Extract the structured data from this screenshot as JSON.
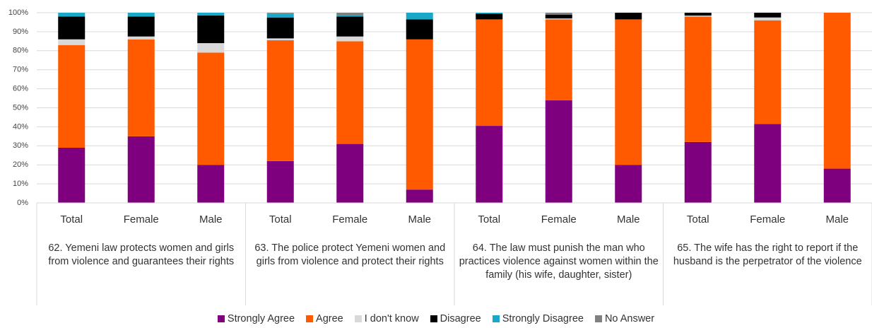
{
  "chart_data": {
    "type": "stacked_bar",
    "categories": [
      "Total",
      "Female",
      "Male",
      "Total",
      "Female",
      "Male",
      "Total",
      "Female",
      "Male",
      "Total",
      "Female",
      "Male"
    ],
    "groups": [
      "62. Yemeni law protects women and girls from violence and guarantees their rights",
      "63. The police protect Yemeni women and girls from violence and protect their rights",
      "64. The law must punish the man who practices violence against women within the family (his wife, daughter, sister)",
      "65. The wife has the right to report if the husband is the perpetrator of the violence"
    ],
    "series": [
      {
        "name": "Strongly Agree",
        "color": "#7f007f",
        "values": [
          29,
          35,
          20,
          22,
          31,
          7,
          40.5,
          54,
          20,
          32,
          41.5,
          18
        ]
      },
      {
        "name": "Agree",
        "color": "#ff5a00",
        "values": [
          54,
          51,
          59,
          63.5,
          54,
          79,
          56,
          42.5,
          76.5,
          66,
          54.5,
          82
        ]
      },
      {
        "name": "I don't know",
        "color": "#d9d9d9",
        "values": [
          3,
          1.5,
          5,
          1,
          2.5,
          0,
          0,
          0.5,
          0,
          0.5,
          1.5,
          0
        ]
      },
      {
        "name": "Disagree",
        "color": "#000000",
        "values": [
          12,
          10.5,
          14.5,
          11,
          10.5,
          10.5,
          3,
          2,
          3.5,
          1.5,
          2.5,
          0
        ]
      },
      {
        "name": "Strongly Disagree",
        "color": "#1aa8c8",
        "values": [
          2,
          2,
          1.5,
          2,
          0.5,
          3.5,
          0.5,
          0,
          0,
          0,
          0,
          0
        ]
      },
      {
        "name": "No Answer",
        "color": "#808080",
        "values": [
          0,
          0,
          0,
          0.5,
          1.5,
          0,
          0,
          1,
          0,
          0,
          0,
          0
        ]
      }
    ],
    "ylim": [
      0,
      100
    ],
    "yticks": [
      {
        "value": 0,
        "label": "0%"
      },
      {
        "value": 10,
        "label": "10%"
      },
      {
        "value": 20,
        "label": "20%"
      },
      {
        "value": 30,
        "label": "30%"
      },
      {
        "value": 40,
        "label": "40%"
      },
      {
        "value": 50,
        "label": "50%"
      },
      {
        "value": 60,
        "label": "60%"
      },
      {
        "value": 70,
        "label": "70%"
      },
      {
        "value": 80,
        "label": "80%"
      },
      {
        "value": 90,
        "label": "90%"
      },
      {
        "value": 100,
        "label": "100%"
      }
    ],
    "grid": true,
    "legend": "bottom"
  }
}
